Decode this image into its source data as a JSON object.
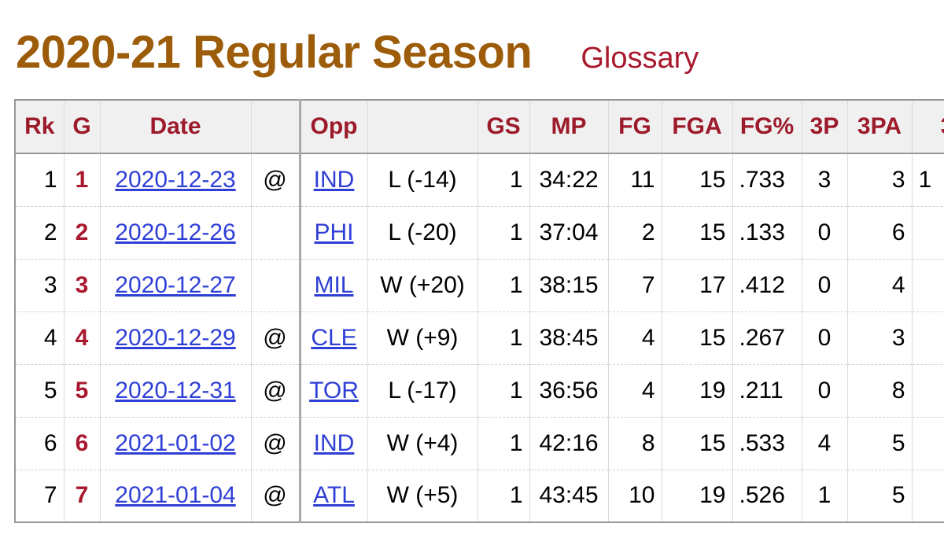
{
  "header": {
    "title": "2020-21 Regular Season",
    "glossary_label": "Glossary"
  },
  "colors": {
    "title": "#9c5c0a",
    "glossary": "#a8192e",
    "header_text": "#9c1a2a",
    "game_number": "#a8192e",
    "link": "#2f3fd6",
    "header_bg": "#f0f0f0"
  },
  "table": {
    "columns": [
      "Rk",
      "G",
      "Date",
      "",
      "Opp",
      "",
      "GS",
      "MP",
      "FG",
      "FGA",
      "FG%",
      "3P",
      "3PA",
      "3"
    ],
    "rows": [
      {
        "rk": "1",
        "g": "1",
        "date": "2020-12-23",
        "loc": "@",
        "opp": "IND",
        "result": "L (-14)",
        "gs": "1",
        "mp": "34:22",
        "fg": "11",
        "fga": "15",
        "fgp": ".733",
        "tp": "3",
        "tpa": "3",
        "next": "1"
      },
      {
        "rk": "2",
        "g": "2",
        "date": "2020-12-26",
        "loc": "",
        "opp": "PHI",
        "result": "L (-20)",
        "gs": "1",
        "mp": "37:04",
        "fg": "2",
        "fga": "15",
        "fgp": ".133",
        "tp": "0",
        "tpa": "6",
        "next": ""
      },
      {
        "rk": "3",
        "g": "3",
        "date": "2020-12-27",
        "loc": "",
        "opp": "MIL",
        "result": "W (+20)",
        "gs": "1",
        "mp": "38:15",
        "fg": "7",
        "fga": "17",
        "fgp": ".412",
        "tp": "0",
        "tpa": "4",
        "next": ""
      },
      {
        "rk": "4",
        "g": "4",
        "date": "2020-12-29",
        "loc": "@",
        "opp": "CLE",
        "result": "W (+9)",
        "gs": "1",
        "mp": "38:45",
        "fg": "4",
        "fga": "15",
        "fgp": ".267",
        "tp": "0",
        "tpa": "3",
        "next": ""
      },
      {
        "rk": "5",
        "g": "5",
        "date": "2020-12-31",
        "loc": "@",
        "opp": "TOR",
        "result": "L (-17)",
        "gs": "1",
        "mp": "36:56",
        "fg": "4",
        "fga": "19",
        "fgp": ".211",
        "tp": "0",
        "tpa": "8",
        "next": ""
      },
      {
        "rk": "6",
        "g": "6",
        "date": "2021-01-02",
        "loc": "@",
        "opp": "IND",
        "result": "W (+4)",
        "gs": "1",
        "mp": "42:16",
        "fg": "8",
        "fga": "15",
        "fgp": ".533",
        "tp": "4",
        "tpa": "5",
        "next": ""
      },
      {
        "rk": "7",
        "g": "7",
        "date": "2021-01-04",
        "loc": "@",
        "opp": "ATL",
        "result": "W (+5)",
        "gs": "1",
        "mp": "43:45",
        "fg": "10",
        "fga": "19",
        "fgp": ".526",
        "tp": "1",
        "tpa": "5",
        "next": ""
      }
    ]
  }
}
